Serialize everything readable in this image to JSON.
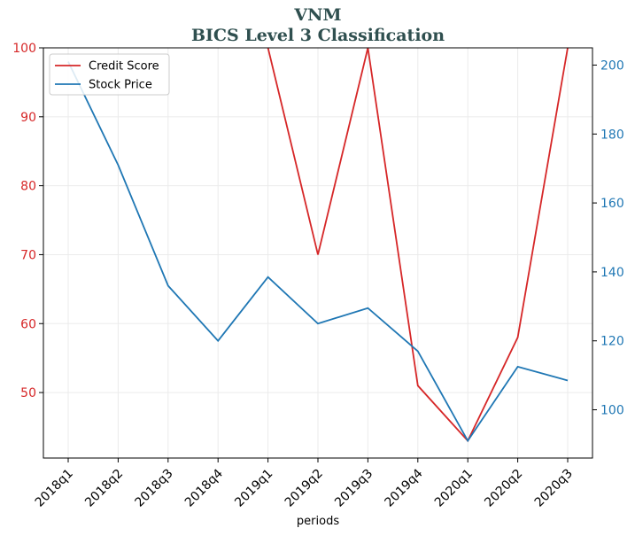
{
  "chart_data": {
    "type": "line",
    "title": "VNM",
    "subtitle": "BICS Level 3 Classification",
    "xlabel": "periods",
    "categories": [
      "2018q1",
      "2018q2",
      "2018q3",
      "2018q4",
      "2019q1",
      "2019q2",
      "2019q3",
      "2019q4",
      "2020q1",
      "2020q2",
      "2020q3"
    ],
    "y_left": {
      "ylim": [
        40.5,
        100
      ],
      "ticks": [
        50,
        60,
        70,
        80,
        90,
        100
      ],
      "color": "#d62728"
    },
    "y_right": {
      "ylim": [
        86,
        205
      ],
      "ticks": [
        100,
        120,
        140,
        160,
        180,
        200
      ],
      "color": "#1f77b4"
    },
    "series": [
      {
        "name": "Credit Score",
        "axis": "left",
        "color": "#d62728",
        "values": [
          null,
          null,
          null,
          null,
          100,
          70,
          100,
          51,
          43,
          58,
          100
        ]
      },
      {
        "name": "Stock Price",
        "axis": "right",
        "color": "#1f77b4",
        "values": [
          201,
          171,
          136,
          120,
          138.5,
          125,
          129.5,
          117,
          91,
          112.5,
          108.5
        ]
      }
    ],
    "grid": true,
    "legend": "top-left"
  }
}
